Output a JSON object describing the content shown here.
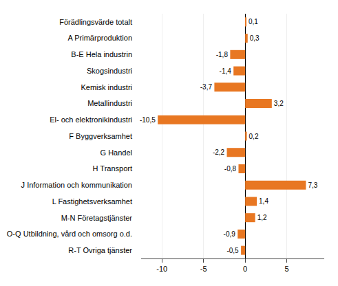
{
  "chart_data": {
    "type": "bar",
    "orientation": "horizontal",
    "categories": [
      "Förädlingsvärde totalt",
      "A Primärproduktion",
      "B-E Hela industrin",
      "Skogsindustri",
      "Kemisk industri",
      "Metallindustri",
      "El- och elektronikindustri",
      "F Byggverksamhet",
      "G Handel",
      "H Transport",
      "J Information och kommunikation",
      "L Fastighetsverksamhet",
      "M-N Företagstjänster",
      "O-Q Utbildning, vård och omsorg o.d.",
      "R-T Övriga tjänster"
    ],
    "values": [
      0.1,
      0.3,
      -1.8,
      -1.4,
      -3.7,
      3.2,
      -10.5,
      0.2,
      -2.2,
      -0.8,
      7.3,
      1.4,
      1.2,
      -0.9,
      -0.5
    ],
    "value_labels": [
      "0,1",
      "0,3",
      "-1,8",
      "-1,4",
      "-3,7",
      "3,2",
      "-10,5",
      "0,2",
      "-2,2",
      "-0,8",
      "7,3",
      "1,4",
      "1,2",
      "-0,9",
      "-0,5"
    ],
    "data_labels": true,
    "color": "#E87722",
    "xlim": [
      -12.5,
      9.5
    ],
    "xticks": [
      -10,
      -5,
      0,
      5
    ],
    "grid": true
  }
}
